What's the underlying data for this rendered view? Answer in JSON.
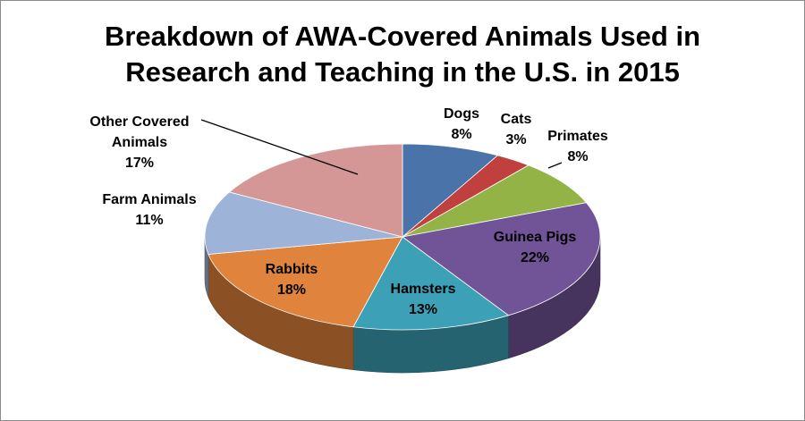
{
  "chart_data": {
    "type": "pie",
    "title_lines": [
      "Breakdown of AWA-Covered Animals Used in",
      "Research and Teaching in the U.S. in 2015"
    ],
    "three_d": true,
    "slices": [
      {
        "name": "Dogs",
        "label_lines": [
          "Dogs"
        ],
        "value": 8,
        "value_label": "8%",
        "color": "#4a73a9"
      },
      {
        "name": "Cats",
        "label_lines": [
          "Cats"
        ],
        "value": 3,
        "value_label": "3%",
        "color": "#c0403d"
      },
      {
        "name": "Primates",
        "label_lines": [
          "Primates"
        ],
        "value": 8,
        "value_label": "8%",
        "color": "#93b346"
      },
      {
        "name": "Guinea Pigs",
        "label_lines": [
          "Guinea Pigs"
        ],
        "value": 22,
        "value_label": "22%",
        "color": "#715397"
      },
      {
        "name": "Hamsters",
        "label_lines": [
          "Hamsters"
        ],
        "value": 13,
        "value_label": "13%",
        "color": "#3ca0b7"
      },
      {
        "name": "Rabbits",
        "label_lines": [
          "Rabbits"
        ],
        "value": 18,
        "value_label": "18%",
        "color": "#e0833c"
      },
      {
        "name": "Farm Animals",
        "label_lines": [
          "Farm Animals"
        ],
        "value": 11,
        "value_label": "11%",
        "color": "#9db4d8"
      },
      {
        "name": "Other Covered Animals",
        "label_lines": [
          "Other Covered",
          "Animals"
        ],
        "value": 17,
        "value_label": "17%",
        "color": "#d59796"
      }
    ]
  }
}
